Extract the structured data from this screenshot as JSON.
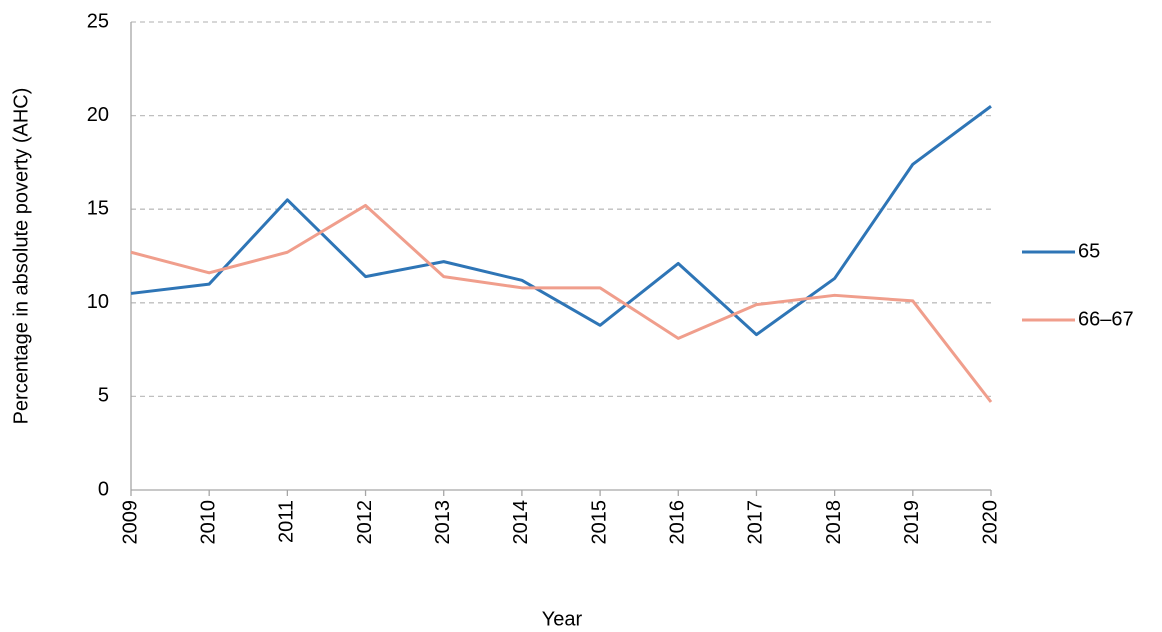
{
  "chart_data": {
    "type": "line",
    "y_label": "Percentage in absolute poverty (AHC)",
    "x_label": "Year",
    "categories": [
      "2009",
      "2010",
      "2011",
      "2012",
      "2013",
      "2014",
      "2015",
      "2016",
      "2017",
      "2018",
      "2019",
      "2020"
    ],
    "series": [
      {
        "name": "65",
        "color": "#2e75b6",
        "values": [
          10.5,
          11.0,
          15.5,
          11.4,
          12.2,
          11.2,
          8.8,
          12.1,
          8.3,
          11.3,
          17.4,
          20.5
        ]
      },
      {
        "name": "66–67",
        "color": "#f09e8c",
        "values": [
          12.7,
          11.6,
          12.7,
          15.2,
          11.4,
          10.8,
          10.8,
          8.1,
          9.9,
          10.4,
          10.1,
          4.7
        ]
      }
    ],
    "ylim": [
      0,
      25
    ],
    "yticks": [
      0,
      5,
      10,
      15,
      20,
      25
    ],
    "grid": true,
    "legend": "right"
  }
}
